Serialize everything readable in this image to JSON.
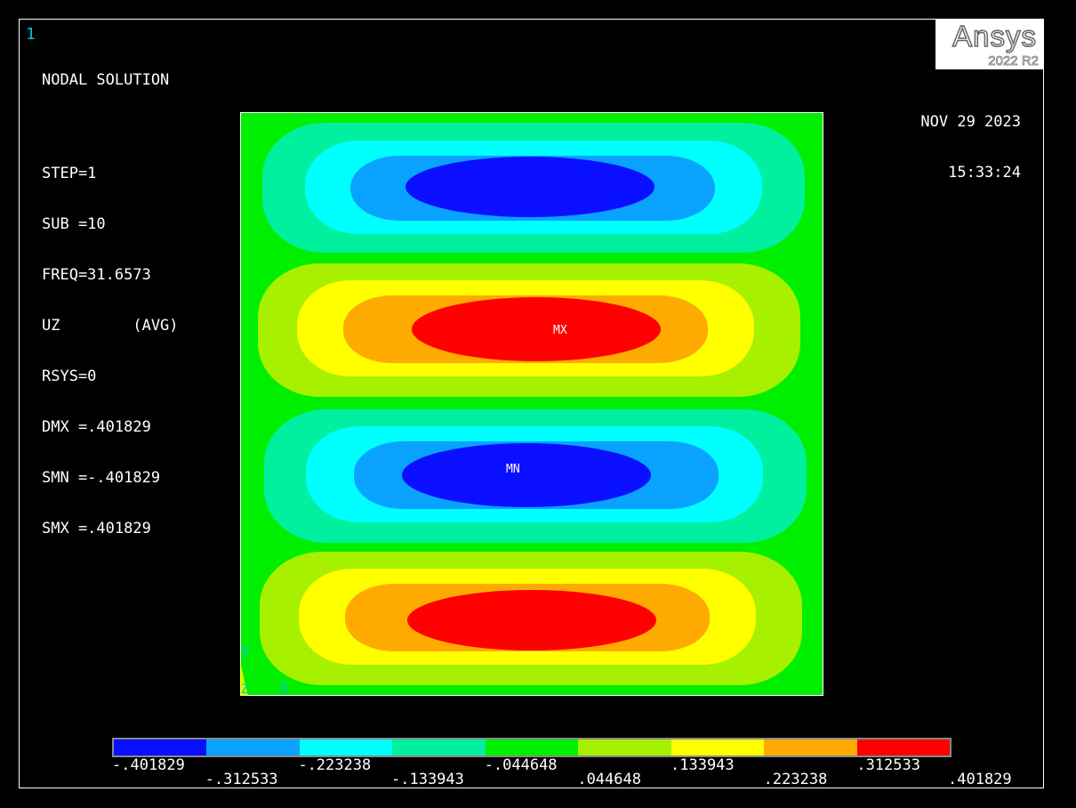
{
  "window": {
    "number": "1"
  },
  "solution": {
    "title": "NODAL SOLUTION",
    "lines": [
      "STEP=1",
      "SUB =10",
      "FREQ=31.6573",
      "UZ        (AVG)",
      "RSYS=0",
      "DMX =.401829",
      "SMN =-.401829",
      "SMX =.401829"
    ]
  },
  "logo": {
    "brand": "Ansys",
    "version": "2022 R2"
  },
  "datetime": {
    "date": "NOV 29 2023",
    "time": "15:33:24"
  },
  "plot": {
    "max_marker": "MX",
    "min_marker": "MN",
    "triad": {
      "y": "Y",
      "z": "Z",
      "x": "X"
    }
  },
  "legend": {
    "colors": [
      "#0a10ff",
      "#0aa2ff",
      "#00ffff",
      "#00f0a0",
      "#00ee00",
      "#a6f000",
      "#ffff00",
      "#ffaa00",
      "#ff0000"
    ],
    "labels": [
      "-.401829",
      "-.312533",
      "-.223238",
      "-.133943",
      "-.044648",
      ".044648",
      ".133943",
      ".223238",
      ".312533",
      ".401829"
    ]
  }
}
